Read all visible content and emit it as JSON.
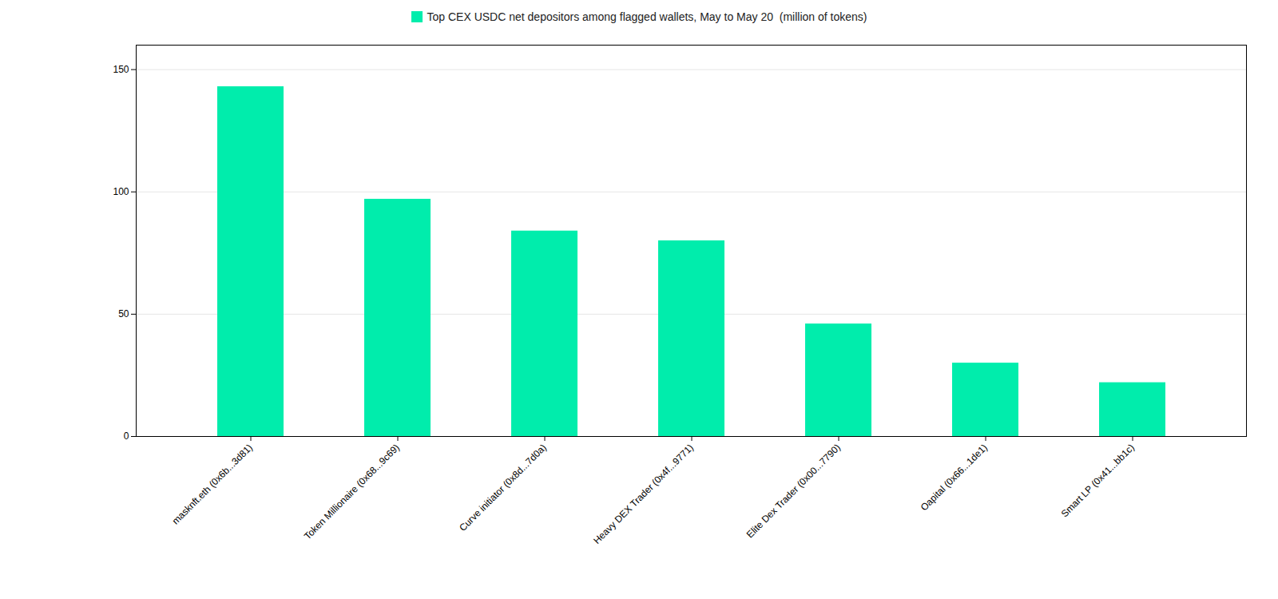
{
  "chart_data": {
    "type": "bar",
    "categories": [
      "masknft.eth (0x6b...3d81)",
      "Token Millionaire (0x68...9c69)",
      "Curve initiator (0x8d...7d0a)",
      "Heavy DEX Trader (0x4f...9771)",
      "Elite Dex Trader (0x00...7790)",
      "Oapital (0x66...1de1)",
      "Smart LP (0x41...bb1c)"
    ],
    "series": [
      {
        "name": "Top CEX USDC net depositors among flagged wallets, May to May 20  (million of tokens)",
        "color": "#00EDAC",
        "values": [
          143,
          97,
          84,
          80,
          46,
          30,
          22
        ]
      }
    ],
    "ylim": [
      0,
      160
    ],
    "yticks": [
      0,
      50,
      100,
      150
    ],
    "grid": true,
    "legend": "top"
  }
}
